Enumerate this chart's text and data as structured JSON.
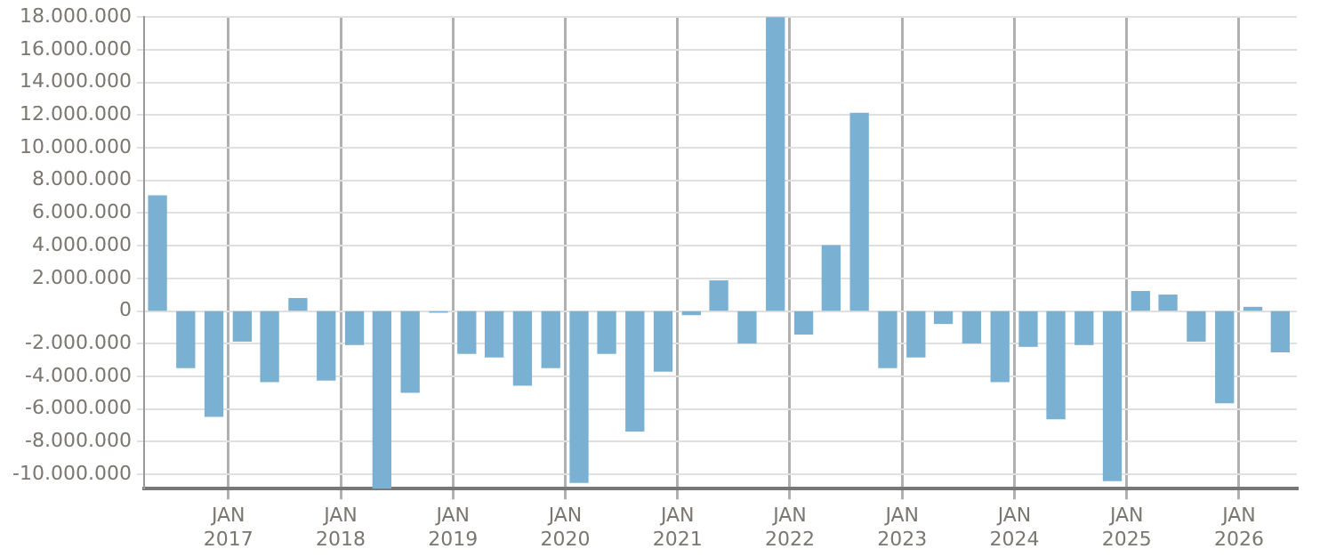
{
  "chart_data": {
    "type": "bar",
    "color": "#7ab1d3",
    "x": [
      "2016-05-15",
      "2016-08-15",
      "2016-11-15",
      "2017-02-15",
      "2017-05-15",
      "2017-08-15",
      "2017-11-15",
      "2018-02-15",
      "2018-05-15",
      "2018-08-15",
      "2018-11-15",
      "2019-02-15",
      "2019-05-15",
      "2019-08-15",
      "2019-11-15",
      "2020-02-15",
      "2020-05-15",
      "2020-08-15",
      "2020-11-15",
      "2021-02-15",
      "2021-05-15",
      "2021-08-15",
      "2021-11-15",
      "2022-02-15",
      "2022-05-15",
      "2022-08-15",
      "2022-11-15",
      "2023-02-15",
      "2023-05-15",
      "2023-08-15",
      "2023-11-15",
      "2024-02-15",
      "2024-05-15",
      "2024-08-15",
      "2024-11-15",
      "2025-02-15",
      "2025-05-15",
      "2025-08-15",
      "2025-11-15",
      "2026-02-15",
      "2026-05-15"
    ],
    "values": [
      7050000,
      -3460000,
      -6450000,
      -1840000,
      -4320000,
      760000,
      -4220000,
      -2050000,
      -10880000,
      -4970000,
      -70000,
      -2590000,
      -2810000,
      -4540000,
      -3460000,
      -10490000,
      -2590000,
      -7350000,
      -3680000,
      -220000,
      1840000,
      -1950000,
      18000000,
      -1410000,
      4000000,
      12110000,
      -3460000,
      -2810000,
      -760000,
      -1950000,
      -4320000,
      -2160000,
      -6590000,
      -2050000,
      -10380000,
      1190000,
      970000,
      -1840000,
      -5620000,
      220000,
      -2490000
    ],
    "xlim": [
      "2016-04-01",
      "2026-07-08"
    ],
    "xticks": [
      {
        "value": "2017-01-01",
        "label": "JAN 2017"
      },
      {
        "value": "2018-01-01",
        "label": "JAN 2018"
      },
      {
        "value": "2019-01-01",
        "label": "JAN 2019"
      },
      {
        "value": "2020-01-01",
        "label": "JAN 2020"
      },
      {
        "value": "2021-01-01",
        "label": "JAN 2021"
      },
      {
        "value": "2022-01-01",
        "label": "JAN 2022"
      },
      {
        "value": "2023-01-01",
        "label": "JAN 2023"
      },
      {
        "value": "2024-01-01",
        "label": "JAN 2024"
      },
      {
        "value": "2025-01-01",
        "label": "JAN 2025"
      },
      {
        "value": "2026-01-01",
        "label": "JAN 2026"
      }
    ],
    "ylim": [
      -10880000,
      18000000
    ],
    "yticks": [
      {
        "value": -10000000,
        "label": "-10.000.000"
      },
      {
        "value": -8000000,
        "label": "-8.000.000"
      },
      {
        "value": -6000000,
        "label": "-6.000.000"
      },
      {
        "value": -4000000,
        "label": "-4.000.000"
      },
      {
        "value": -2000000,
        "label": "-2.000.000"
      },
      0,
      {
        "value": 2000000,
        "label": "2.000.000"
      },
      {
        "value": 4000000,
        "label": "4.000.000"
      },
      {
        "value": 6000000,
        "label": "6.000.000"
      },
      {
        "value": 8000000,
        "label": "8.000.000"
      },
      {
        "value": 10000000,
        "label": "10.000.000"
      },
      {
        "value": 12000000,
        "label": "12.000.000"
      },
      {
        "value": 14000000,
        "label": "14.000.000"
      },
      {
        "value": 16000000,
        "label": "16.000.000"
      },
      {
        "value": 18000000,
        "label": "18.000.000"
      }
    ],
    "grid": true,
    "legend": false
  }
}
